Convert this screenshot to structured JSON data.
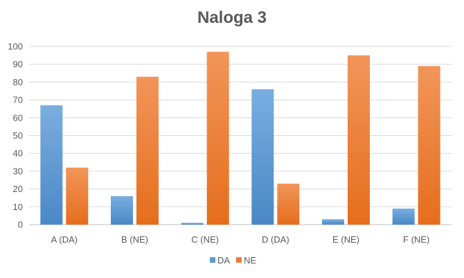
{
  "chart_data": {
    "type": "bar",
    "title": "Naloga 3",
    "categories": [
      "A (DA)",
      "B (NE)",
      "C (NE)",
      "D (DA)",
      "E (NE)",
      "F (NE)"
    ],
    "series": [
      {
        "name": "DA",
        "color": "#5B9BD5",
        "values": [
          67,
          16,
          1,
          76,
          3,
          9
        ]
      },
      {
        "name": "NE",
        "color": "#ED7D31",
        "values": [
          32,
          83,
          97,
          23,
          95,
          89
        ]
      }
    ],
    "ylim": [
      0,
      100
    ],
    "yticks": [
      0,
      10,
      20,
      30,
      40,
      50,
      60,
      70,
      80,
      90,
      100
    ],
    "grid": true,
    "legend_position": "bottom"
  }
}
